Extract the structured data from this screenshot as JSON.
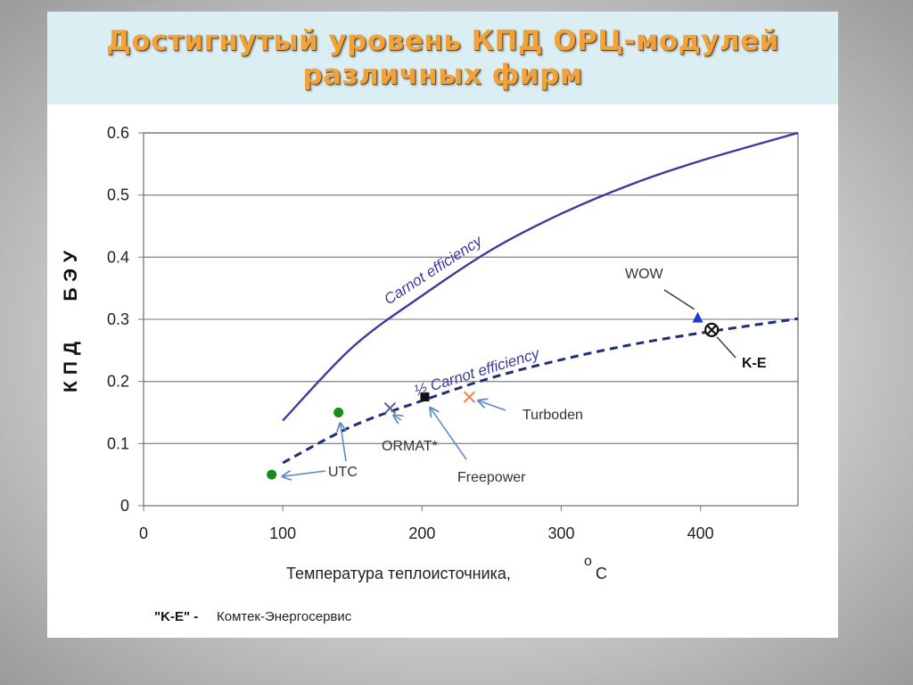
{
  "slide": {
    "title_line1": "Достигнутый уровень КПД ОРЦ-модулей",
    "title_line2": "различных фирм"
  },
  "chart_data": {
    "type": "line",
    "title": "Достигнутый уровень КПД ОРЦ-модулей различных фирм",
    "xlabel": "Температура теплоисточника,",
    "xlabel_unit_deg": "o",
    "xlabel_unit": "C",
    "ylabel": "КПД   БЭУ",
    "xlim": [
      0,
      470
    ],
    "ylim": [
      0,
      0.6
    ],
    "x_ticks": [
      "0",
      "100",
      "200",
      "300",
      "400"
    ],
    "x_tick_values": [
      0,
      100,
      200,
      300,
      400
    ],
    "y_ticks": [
      "0",
      "0.1",
      "0.2",
      "0.3",
      "0.4",
      "0.5",
      "0.6"
    ],
    "y_tick_values": [
      0,
      0.1,
      0.2,
      0.3,
      0.4,
      0.5,
      0.6
    ],
    "grid": "horizontal",
    "series": [
      {
        "name": "Carnot efficiency",
        "style": "solid",
        "color": "#3b3b9e",
        "x": [
          100,
          150,
          200,
          250,
          300,
          350,
          400,
          470
        ],
        "y": [
          0.137,
          0.255,
          0.338,
          0.412,
          0.47,
          0.517,
          0.555,
          0.6
        ]
      },
      {
        "name": "½ Carnot efficiency",
        "style": "dashed",
        "color": "#1f2f7a",
        "x": [
          100,
          150,
          200,
          250,
          300,
          350,
          400,
          470
        ],
        "y": [
          0.069,
          0.128,
          0.169,
          0.206,
          0.235,
          0.259,
          0.278,
          0.301
        ]
      }
    ],
    "curve_labels": [
      {
        "text": "Carnot efficiency",
        "x": 245,
        "y": 0.435
      },
      {
        "text": "½ Carnot efficiency",
        "x": 295,
        "y": 0.253
      }
    ],
    "points": [
      {
        "name": "UTC",
        "x": 92,
        "y": 0.05,
        "marker": "circle",
        "color": "#1a8a1a",
        "label": "UTC"
      },
      {
        "name": "UTC",
        "x": 140,
        "y": 0.15,
        "marker": "circle",
        "color": "#1a8a1a",
        "label": ""
      },
      {
        "name": "ORMAT",
        "x": 177,
        "y": 0.157,
        "marker": "x",
        "color": "#5a6a9a",
        "label": "ORMAT*"
      },
      {
        "name": "Freepower",
        "x": 202,
        "y": 0.175,
        "marker": "square",
        "color": "#111111",
        "label": "Freepower"
      },
      {
        "name": "Turboden",
        "x": 234,
        "y": 0.175,
        "marker": "x",
        "color": "#f08050",
        "label": "Turboden"
      },
      {
        "name": "WOW",
        "x": 398,
        "y": 0.302,
        "marker": "triangle",
        "color": "#1a3ad0",
        "label": "WOW"
      },
      {
        "name": "K-E",
        "x": 408,
        "y": 0.283,
        "marker": "circle-x",
        "color": "#111111",
        "label": "K-E"
      }
    ],
    "footnote_key": "\"K-E\" -",
    "footnote_text": "Комтек-Энергосервис"
  }
}
